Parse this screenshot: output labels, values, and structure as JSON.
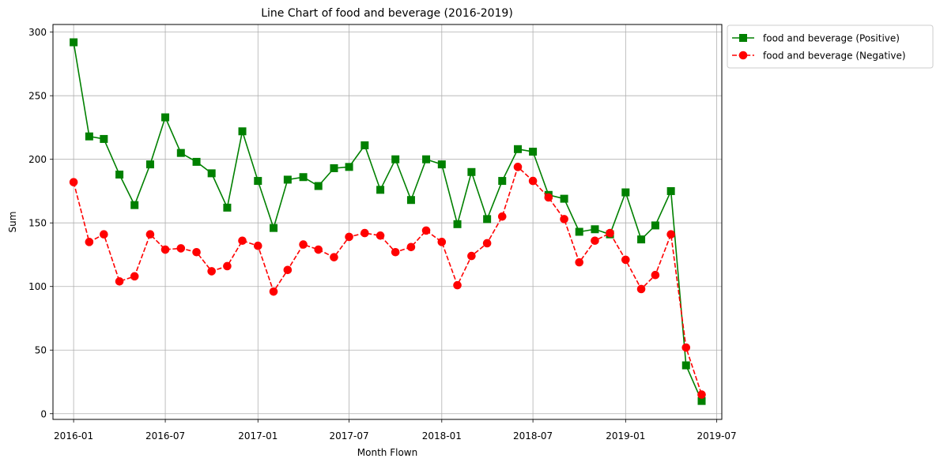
{
  "chart_data": {
    "type": "line",
    "title": "Line Chart of food and beverage (2016-2019)",
    "xlabel": "Month Flown",
    "ylabel": "Sum",
    "x": [
      "2016-01",
      "2016-02",
      "2016-03",
      "2016-04",
      "2016-05",
      "2016-06",
      "2016-07",
      "2016-08",
      "2016-09",
      "2016-10",
      "2016-11",
      "2016-12",
      "2017-01",
      "2017-02",
      "2017-03",
      "2017-04",
      "2017-05",
      "2017-06",
      "2017-07",
      "2017-08",
      "2017-09",
      "2017-10",
      "2017-11",
      "2017-12",
      "2018-01",
      "2018-02",
      "2018-03",
      "2018-04",
      "2018-05",
      "2018-06",
      "2018-07",
      "2018-08",
      "2018-09",
      "2018-10",
      "2018-11",
      "2018-12",
      "2019-01",
      "2019-02",
      "2019-03",
      "2019-04",
      "2019-05",
      "2019-06"
    ],
    "xticks": [
      "2016-01",
      "2016-07",
      "2017-01",
      "2017-07",
      "2018-01",
      "2018-07",
      "2019-01",
      "2019-07"
    ],
    "xlim": [
      "2015-11-21",
      "2019-07-11"
    ],
    "yticks": [
      0,
      50,
      100,
      150,
      200,
      250,
      300
    ],
    "ylim": [
      -4.5,
      306
    ],
    "grid": true,
    "legend_position": "outside top-right",
    "series": [
      {
        "name": "food and beverage (Positive)",
        "color": "#008000",
        "marker": "square",
        "linestyle": "solid",
        "values": [
          292,
          218,
          216,
          188,
          164,
          196,
          233,
          205,
          198,
          189,
          162,
          222,
          183,
          146,
          184,
          186,
          179,
          193,
          194,
          211,
          176,
          200,
          168,
          200,
          196,
          149,
          190,
          153,
          183,
          208,
          206,
          172,
          169,
          143,
          145,
          141,
          174,
          137,
          148,
          175,
          38,
          10
        ]
      },
      {
        "name": "food and beverage (Negative)",
        "color": "#ff0000",
        "marker": "circle",
        "linestyle": "dashed",
        "values": [
          182,
          135,
          141,
          104,
          108,
          141,
          129,
          130,
          127,
          112,
          116,
          136,
          132,
          96,
          113,
          133,
          129,
          123,
          139,
          142,
          140,
          127,
          131,
          144,
          135,
          101,
          124,
          134,
          155,
          194,
          183,
          170,
          153,
          119,
          136,
          142,
          121,
          98,
          109,
          141,
          52,
          15
        ]
      }
    ]
  }
}
